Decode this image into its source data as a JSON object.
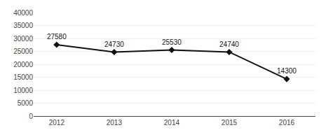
{
  "chart_data": {
    "type": "line",
    "x": [
      2012,
      2013,
      2014,
      2015,
      2016
    ],
    "values": [
      27580,
      24730,
      25530,
      24740,
      14300
    ],
    "color": "#111111",
    "marker": "diamond",
    "xlim": [
      2011.6,
      2016.5
    ],
    "xticks": [
      2012,
      2013,
      2014,
      2015,
      2016
    ],
    "ylim": [
      0,
      40000
    ],
    "yticks": [
      0,
      5000,
      10000,
      15000,
      20000,
      25000,
      30000,
      35000,
      40000
    ],
    "grid": "y",
    "data_labels": true
  }
}
